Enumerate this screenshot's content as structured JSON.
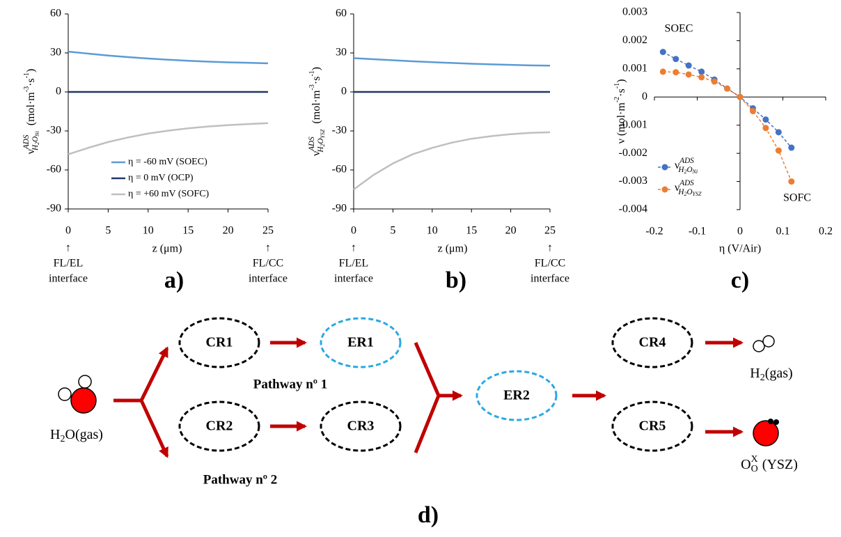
{
  "chart_data": [
    {
      "type": "line",
      "ylabel": [
        "ν",
        "ADS",
        "H",
        "2",
        "O",
        "Ni",
        "(mol·m",
        "-3",
        "·s",
        "-1",
        ")"
      ],
      "xlabel": "z (μm)",
      "x": [
        0,
        2.5,
        5,
        7.5,
        10,
        12.5,
        15,
        17.5,
        20,
        22.5,
        25
      ],
      "xlim": [
        0,
        25
      ],
      "xticks": [
        0,
        5,
        10,
        15,
        20,
        25
      ],
      "ylim": [
        -90,
        60
      ],
      "yticks": [
        -90,
        -60,
        -30,
        0,
        30,
        60
      ],
      "series": [
        {
          "name": "η = -60 mV (SOEC)",
          "color": "#5b9bd5",
          "values": [
            31,
            29.5,
            28,
            26.8,
            25.7,
            24.8,
            24,
            23.3,
            22.8,
            22.4,
            22
          ]
        },
        {
          "name": "η = 0 mV (OCP)",
          "color": "#203864",
          "values": [
            0,
            0,
            0,
            0,
            0,
            0,
            0,
            0,
            0,
            0,
            0
          ]
        },
        {
          "name": "η = +60 mV (SOFC)",
          "color": "#bfbfbf",
          "values": [
            -48,
            -43,
            -38.5,
            -35,
            -32,
            -29.8,
            -28,
            -26.6,
            -25.5,
            -24.7,
            -24
          ]
        }
      ],
      "x_annotations": [
        [
          "FL/EL",
          "interface"
        ],
        [
          "FL/CC",
          "interface"
        ]
      ],
      "arrow": "↑",
      "panel_label": "a)"
    },
    {
      "type": "line",
      "ylabel": [
        "ν",
        "ADS",
        "H",
        "2",
        "O",
        "YSZ",
        "(mol·m",
        "-3",
        "·s",
        "-1",
        ")"
      ],
      "xlabel": "z (μm)",
      "x": [
        0,
        2.5,
        5,
        7.5,
        10,
        12.5,
        15,
        17.5,
        20,
        22.5,
        25
      ],
      "xlim": [
        0,
        25
      ],
      "xticks": [
        0,
        5,
        10,
        15,
        20,
        25
      ],
      "ylim": [
        -90,
        60
      ],
      "yticks": [
        -90,
        -60,
        -30,
        0,
        30,
        60
      ],
      "series": [
        {
          "color": "#5b9bd5",
          "values": [
            26,
            25.2,
            24.4,
            23.6,
            22.9,
            22.3,
            21.7,
            21.2,
            20.8,
            20.4,
            20.2
          ]
        },
        {
          "color": "#203864",
          "values": [
            0,
            0,
            0,
            0,
            0,
            0,
            0,
            0,
            0,
            0,
            0
          ]
        },
        {
          "color": "#bfbfbf",
          "values": [
            -75,
            -64,
            -55,
            -48,
            -43,
            -39,
            -36,
            -34,
            -32.5,
            -31.5,
            -31
          ]
        }
      ],
      "x_annotations": [
        [
          "FL/EL",
          "interface"
        ],
        [
          "FL/CC",
          "interface"
        ]
      ],
      "arrow": "↑",
      "panel_label": "b)"
    },
    {
      "type": "line",
      "ylabel": [
        "ν (mol·m",
        "-2",
        "·s",
        "-1",
        ")"
      ],
      "xlabel": "η (V/Air)",
      "x": [
        -0.18,
        -0.15,
        -0.12,
        -0.09,
        -0.06,
        -0.03,
        0,
        0.03,
        0.06,
        0.09,
        0.12
      ],
      "xlim": [
        -0.2,
        0.2
      ],
      "xticks": [
        -0.2,
        -0.1,
        0,
        0.1,
        0.2
      ],
      "ylim": [
        -0.004,
        0.003
      ],
      "yticks": [
        -0.004,
        -0.003,
        -0.002,
        -0.001,
        0,
        0.001,
        0.002,
        0.003
      ],
      "axes_cross": "origin",
      "markers": true,
      "line_style": "dashed",
      "series": [
        {
          "name": [
            "ν",
            "ADS",
            "H",
            "2",
            "O",
            "Ni"
          ],
          "color": "#4472c4",
          "values": [
            0.0016,
            0.00135,
            0.00112,
            0.0009,
            0.00062,
            0.0003,
            0,
            -0.0004,
            -0.0008,
            -0.00125,
            -0.0018
          ]
        },
        {
          "name": [
            "ν",
            "ADS",
            "H",
            "2",
            "O",
            "YSZ"
          ],
          "color": "#ed7d31",
          "values": [
            0.0009,
            0.00088,
            0.0008,
            0.0007,
            0.00055,
            0.0003,
            0,
            -0.0005,
            -0.0011,
            -0.0019,
            -0.003
          ]
        }
      ],
      "annotations": [
        "SOEC",
        "SOFC"
      ],
      "panel_label": "c)"
    }
  ],
  "diagram": {
    "nodes": [
      {
        "label": "CR1",
        "color": "#000000"
      },
      {
        "label": "ER1",
        "color": "#29a9e1"
      },
      {
        "label": "CR2",
        "color": "#000000"
      },
      {
        "label": "CR3",
        "color": "#000000"
      },
      {
        "label": "ER2",
        "color": "#29a9e1"
      },
      {
        "label": "CR4",
        "color": "#000000"
      },
      {
        "label": "CR5",
        "color": "#000000"
      }
    ],
    "pathways": [
      "Pathway nº 1",
      "Pathway nº 2"
    ],
    "reactant": [
      "H",
      "2",
      "O(gas)"
    ],
    "products": [
      [
        "H",
        "2",
        "(gas)"
      ],
      [
        "O",
        "X",
        "O",
        "(YSZ)"
      ]
    ],
    "panel_label": "d)"
  }
}
